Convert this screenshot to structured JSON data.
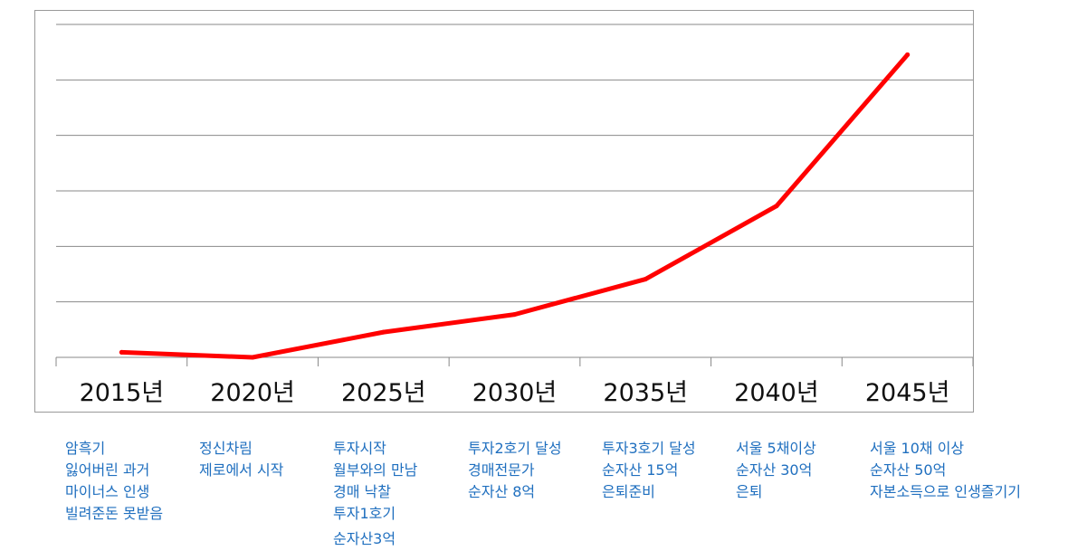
{
  "chart_data": {
    "type": "line",
    "categories": [
      "2015년",
      "2020년",
      "2025년",
      "2030년",
      "2035년",
      "2040년",
      "2045년"
    ],
    "series": [
      {
        "values": [
          0.1,
          0.0,
          0.5,
          0.85,
          1.55,
          3.0,
          6.0
        ],
        "color": "#ff0000"
      }
    ],
    "ylim": [
      0,
      6.6
    ],
    "grid": true,
    "title": "",
    "xlabel": "",
    "ylabel": ""
  },
  "annotations": [
    {
      "lines": [
        "암흑기",
        "잃어버린 과거",
        "마이너스 인생",
        "빌려준돈 못받음"
      ]
    },
    {
      "lines": [
        "정신차림",
        "제로에서 시작"
      ]
    },
    {
      "lines": [
        "투자시작",
        "월부와의 만남",
        "경매 낙찰",
        "투자1호기",
        "순자산3억"
      ]
    },
    {
      "lines": [
        "투자2호기 달성",
        "경매전문가",
        "순자산 8억"
      ]
    },
    {
      "lines": [
        "투자3호기 달성",
        "순자산 15억",
        "은퇴준비"
      ]
    },
    {
      "lines": [
        "서울 5채이상",
        "순자산 30억",
        "은퇴"
      ]
    },
    {
      "lines": [
        "서울 10채 이상",
        "순자산 50억",
        "자본소득으로 인생즐기기"
      ]
    }
  ]
}
